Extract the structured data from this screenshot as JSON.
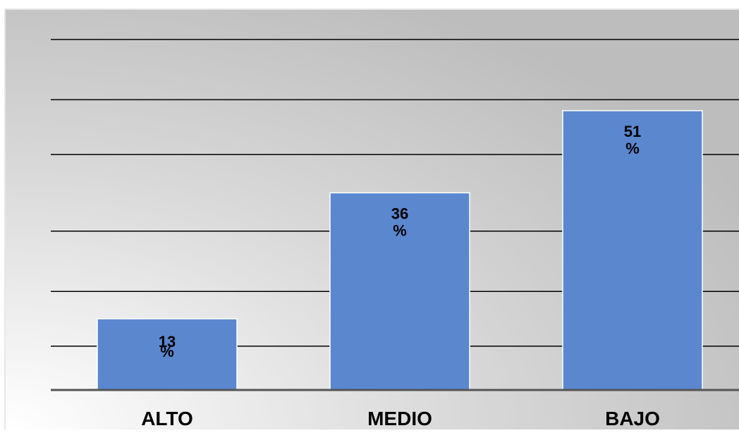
{
  "chart_data": {
    "type": "bar",
    "title": "",
    "xlabel": "",
    "ylabel": "",
    "categories": [
      "ALTO",
      "MEDIO",
      "BAJO"
    ],
    "series": [
      {
        "values": [
          13,
          36,
          51
        ],
        "data_labels": [
          "13 %",
          "36 %",
          "51 %"
        ]
      }
    ],
    "value_unit": "%",
    "ylim": [
      0,
      64
    ],
    "grid": true,
    "legend": "none",
    "colors": {
      "bar": "#5b87cf",
      "bar_edge": "#ffffff",
      "gridline": "#000000",
      "axis": "#555555",
      "background_light": "#ffffff",
      "background_dark": "#c0c0c0"
    }
  }
}
